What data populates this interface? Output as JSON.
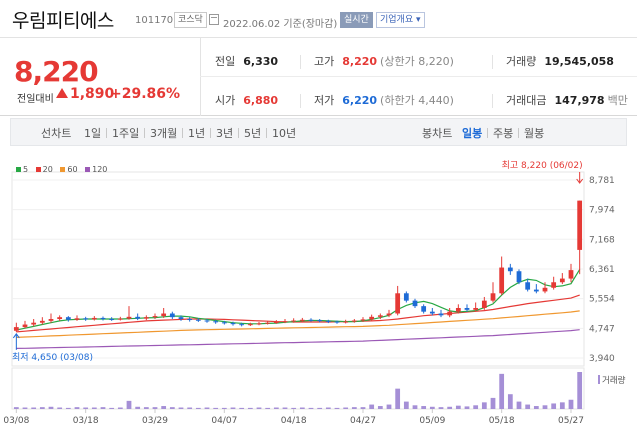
{
  "header": {
    "name": "우림피티에스",
    "code": "101170",
    "market": "코스닥",
    "date": "2022.06.02 기준(장마감)",
    "live_label": "실시간",
    "info_label": "기업개요"
  },
  "summary": {
    "price": "8,220",
    "change_label": "전일대비",
    "change": "1,890",
    "change_pct": "+29.86%",
    "prev_label": "전일",
    "prev": "6,330",
    "high_label": "고가",
    "high": "8,220",
    "high_sub": "(상한가 8,220)",
    "volume_label": "거래량",
    "volume": "19,545,058",
    "open_label": "시가",
    "open": "6,880",
    "low_label": "저가",
    "low": "6,220",
    "low_sub": "(하한가 4,440)",
    "amount_label": "거래대금",
    "amount": "147,978",
    "amount_unit": "백만"
  },
  "toolbar": {
    "line_label": "선차트",
    "line_periods": [
      "1일",
      "1주일",
      "3개월",
      "1년",
      "3년",
      "5년",
      "10년"
    ],
    "candle_label": "봉차트",
    "candle_periods": [
      "일봉",
      "주봉",
      "월봉"
    ],
    "candle_selected": 0
  },
  "colors": {
    "up": "#e53935",
    "down": "#1e6bd6",
    "ma5": "#27a844",
    "ma20": "#e53935",
    "ma60": "#f09830",
    "ma120": "#9b59b6",
    "volume": "#a58fd6"
  },
  "chart_data": {
    "type": "candlestick",
    "legend": [
      "5",
      "20",
      "60",
      "120"
    ],
    "y_ticks": [
      8781,
      7974,
      7168,
      6361,
      5554,
      4747,
      3940
    ],
    "y_tick_labels": [
      "8,781",
      "7,974",
      "7,168",
      "6,361",
      "5,554",
      "4,747",
      "3,940"
    ],
    "ylim": [
      3940,
      8781
    ],
    "x_labels": [
      "03/08",
      "03/18",
      "03/29",
      "04/07",
      "04/18",
      "04/27",
      "05/09",
      "05/18",
      "05/27"
    ],
    "x_label_index": [
      0,
      8,
      16,
      24,
      32,
      40,
      48,
      56,
      64
    ],
    "high_label": "최고 8,220 (06/02)",
    "low_label": "최저 4,650 (03/08)",
    "volume_label": "거래량",
    "candles": [
      [
        4680,
        4780,
        4650,
        4900
      ],
      [
        4780,
        4850,
        4750,
        4950
      ],
      [
        4850,
        4900,
        4800,
        5000
      ],
      [
        4900,
        4950,
        4850,
        5050
      ],
      [
        4950,
        5000,
        4900,
        5150
      ],
      [
        5000,
        5050,
        4950,
        5100
      ],
      [
        5050,
        4980,
        4930,
        5080
      ],
      [
        4980,
        5020,
        4950,
        5100
      ],
      [
        5020,
        4990,
        4950,
        5060
      ],
      [
        4990,
        5030,
        4960,
        5080
      ],
      [
        5030,
        5000,
        4960,
        5070
      ],
      [
        5000,
        4990,
        4950,
        5050
      ],
      [
        4990,
        5010,
        4960,
        5060
      ],
      [
        5010,
        5060,
        4980,
        5350
      ],
      [
        5060,
        5010,
        4970,
        5150
      ],
      [
        5010,
        5050,
        4970,
        5100
      ],
      [
        5050,
        5080,
        5000,
        5150
      ],
      [
        5080,
        5150,
        5030,
        5300
      ],
      [
        5150,
        5050,
        5000,
        5200
      ],
      [
        5050,
        5000,
        4950,
        5100
      ],
      [
        5000,
        4980,
        4930,
        5050
      ],
      [
        4980,
        4960,
        4920,
        5020
      ],
      [
        4960,
        4940,
        4900,
        5000
      ],
      [
        4940,
        4910,
        4870,
        4980
      ],
      [
        4910,
        4890,
        4850,
        4950
      ],
      [
        4890,
        4860,
        4820,
        4930
      ],
      [
        4860,
        4840,
        4800,
        4900
      ],
      [
        4840,
        4860,
        4810,
        4900
      ],
      [
        4860,
        4880,
        4830,
        4920
      ],
      [
        4880,
        4900,
        4850,
        4950
      ],
      [
        4900,
        4920,
        4870,
        4970
      ],
      [
        4920,
        4940,
        4890,
        5000
      ],
      [
        4940,
        4960,
        4900,
        5020
      ],
      [
        4960,
        4980,
        4920,
        5030
      ],
      [
        4980,
        4970,
        4930,
        5020
      ],
      [
        4970,
        4950,
        4910,
        5000
      ],
      [
        4950,
        4930,
        4890,
        4980
      ],
      [
        4930,
        4910,
        4870,
        4960
      ],
      [
        4910,
        4930,
        4880,
        4980
      ],
      [
        4930,
        4960,
        4900,
        5000
      ],
      [
        4960,
        4990,
        4920,
        5050
      ],
      [
        4990,
        5060,
        4950,
        5120
      ],
      [
        5060,
        5100,
        5000,
        5150
      ],
      [
        5100,
        5150,
        5050,
        5250
      ],
      [
        5150,
        5700,
        5100,
        5900
      ],
      [
        5700,
        5500,
        5450,
        5750
      ],
      [
        5500,
        5350,
        5300,
        5550
      ],
      [
        5350,
        5200,
        5150,
        5400
      ],
      [
        5200,
        5150,
        5100,
        5300
      ],
      [
        5150,
        5100,
        5050,
        5250
      ],
      [
        5100,
        5200,
        5050,
        5300
      ],
      [
        5200,
        5300,
        5150,
        5400
      ],
      [
        5300,
        5250,
        5200,
        5400
      ],
      [
        5250,
        5300,
        5200,
        5450
      ],
      [
        5300,
        5500,
        5250,
        5600
      ],
      [
        5500,
        5700,
        5450,
        6000
      ],
      [
        5700,
        6400,
        5650,
        6700
      ],
      [
        6400,
        6300,
        6200,
        6500
      ],
      [
        6300,
        6000,
        5950,
        6350
      ],
      [
        6000,
        5800,
        5750,
        6100
      ],
      [
        5800,
        5750,
        5700,
        5950
      ],
      [
        5750,
        5850,
        5700,
        6000
      ],
      [
        5850,
        6000,
        5800,
        6150
      ],
      [
        6000,
        6100,
        5950,
        6250
      ],
      [
        6100,
        6330,
        6000,
        6500
      ],
      [
        6880,
        8220,
        6220,
        8220
      ]
    ],
    "ma5": [
      4700,
      4750,
      4800,
      4850,
      4900,
      4950,
      4980,
      4990,
      5000,
      5000,
      5000,
      5000,
      5000,
      5010,
      5020,
      5030,
      5040,
      5060,
      5080,
      5080,
      5060,
      5020,
      4990,
      4960,
      4930,
      4900,
      4880,
      4870,
      4870,
      4880,
      4890,
      4910,
      4930,
      4950,
      4960,
      4960,
      4950,
      4940,
      4930,
      4930,
      4950,
      4990,
      5040,
      5100,
      5260,
      5370,
      5440,
      5480,
      5420,
      5320,
      5220,
      5190,
      5210,
      5230,
      5310,
      5410,
      5650,
      5860,
      6000,
      6080,
      6050,
      5930,
      5880,
      5900,
      5960,
      6350
    ],
    "ma20": [
      4650,
      4670,
      4690,
      4710,
      4730,
      4750,
      4770,
      4790,
      4810,
      4830,
      4850,
      4870,
      4890,
      4910,
      4930,
      4950,
      4960,
      4970,
      4980,
      4990,
      5000,
      5000,
      5000,
      4995,
      4990,
      4980,
      4970,
      4960,
      4950,
      4940,
      4930,
      4925,
      4920,
      4920,
      4920,
      4920,
      4920,
      4925,
      4930,
      4935,
      4940,
      4950,
      4960,
      4980,
      5000,
      5030,
      5060,
      5090,
      5110,
      5130,
      5150,
      5170,
      5190,
      5210,
      5230,
      5260,
      5300,
      5340,
      5380,
      5420,
      5450,
      5480,
      5510,
      5540,
      5570,
      5650
    ],
    "ma60": [
      4500,
      4510,
      4520,
      4530,
      4540,
      4550,
      4560,
      4570,
      4580,
      4590,
      4600,
      4610,
      4620,
      4630,
      4640,
      4650,
      4660,
      4670,
      4680,
      4690,
      4700,
      4705,
      4710,
      4715,
      4720,
      4725,
      4730,
      4735,
      4740,
      4745,
      4750,
      4755,
      4760,
      4765,
      4770,
      4775,
      4780,
      4785,
      4790,
      4795,
      4800,
      4810,
      4820,
      4830,
      4845,
      4860,
      4875,
      4890,
      4905,
      4920,
      4935,
      4950,
      4965,
      4980,
      4995,
      5010,
      5030,
      5050,
      5070,
      5090,
      5110,
      5130,
      5150,
      5170,
      5190,
      5220
    ],
    "ma120": [
      4200,
      4205,
      4210,
      4215,
      4220,
      4225,
      4230,
      4235,
      4240,
      4245,
      4250,
      4255,
      4260,
      4265,
      4270,
      4275,
      4280,
      4285,
      4290,
      4295,
      4300,
      4305,
      4310,
      4315,
      4320,
      4325,
      4330,
      4335,
      4340,
      4345,
      4350,
      4355,
      4360,
      4365,
      4370,
      4375,
      4380,
      4385,
      4390,
      4395,
      4400,
      4410,
      4420,
      4430,
      4440,
      4450,
      4460,
      4470,
      4480,
      4490,
      4500,
      4510,
      4520,
      4530,
      4540,
      4550,
      4565,
      4580,
      4595,
      4610,
      4625,
      4640,
      4655,
      4670,
      4685,
      4710
    ],
    "volume": [
      0.05,
      0.04,
      0.04,
      0.05,
      0.06,
      0.04,
      0.03,
      0.05,
      0.04,
      0.04,
      0.05,
      0.03,
      0.04,
      0.22,
      0.06,
      0.05,
      0.05,
      0.08,
      0.05,
      0.04,
      0.04,
      0.03,
      0.04,
      0.03,
      0.03,
      0.04,
      0.03,
      0.03,
      0.04,
      0.03,
      0.04,
      0.04,
      0.03,
      0.04,
      0.03,
      0.03,
      0.04,
      0.03,
      0.04,
      0.05,
      0.05,
      0.12,
      0.08,
      0.12,
      0.55,
      0.2,
      0.1,
      0.08,
      0.06,
      0.05,
      0.06,
      0.09,
      0.07,
      0.1,
      0.18,
      0.3,
      0.95,
      0.4,
      0.2,
      0.12,
      0.08,
      0.1,
      0.15,
      0.18,
      0.25,
      1.0
    ]
  }
}
